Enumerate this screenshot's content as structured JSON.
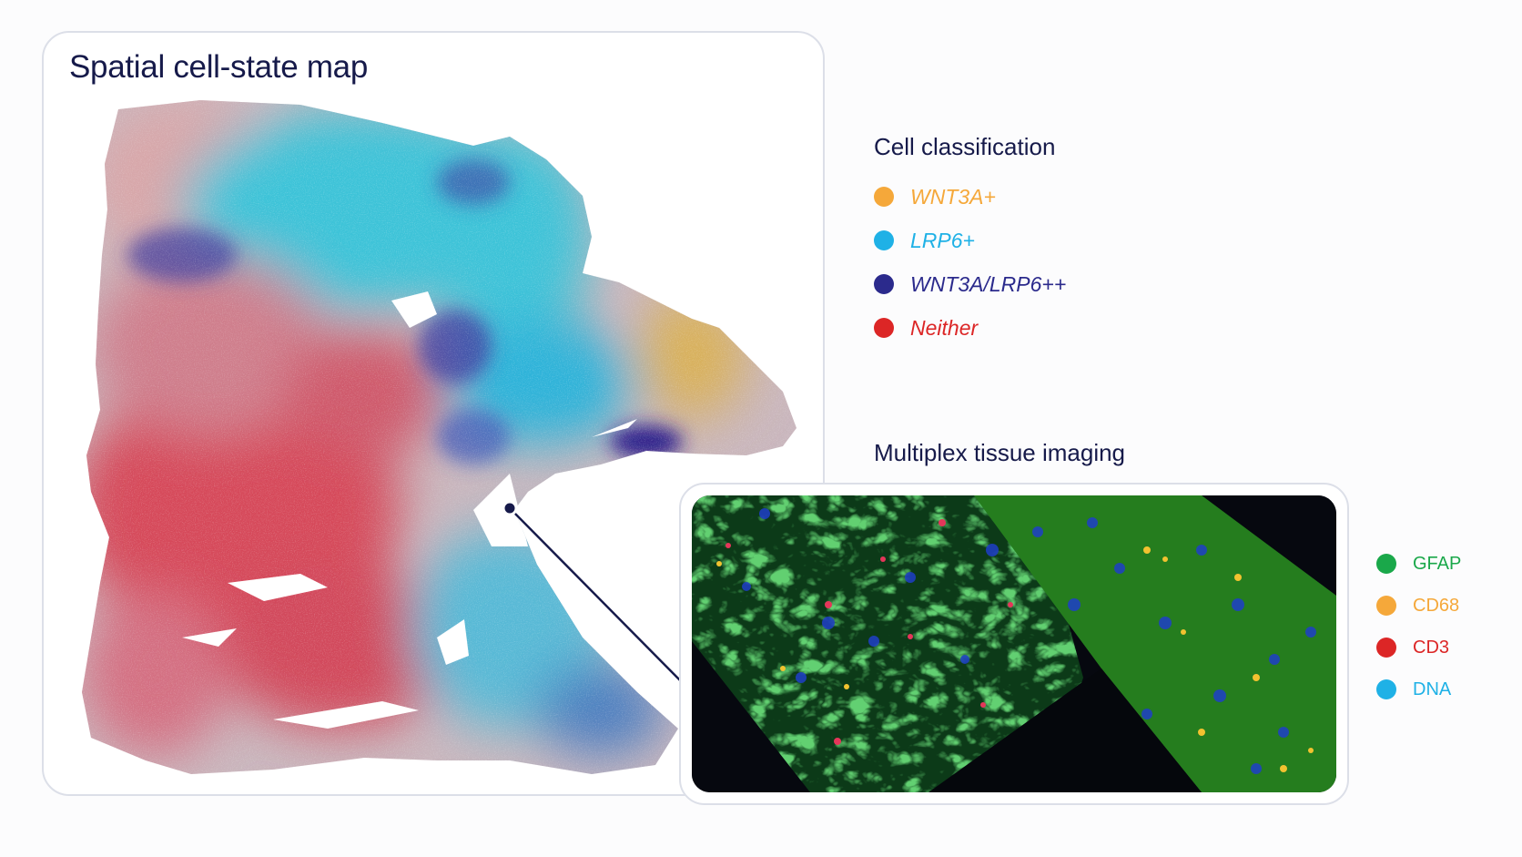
{
  "map": {
    "title": "Spatial cell-state map"
  },
  "classification": {
    "title": "Cell classification",
    "items": [
      {
        "label": "WNT3A+",
        "color": "#f5a83a"
      },
      {
        "label": "LRP6+",
        "color": "#1fb1e6"
      },
      {
        "label": "WNT3A/LRP6++",
        "color": "#2b2a8c"
      },
      {
        "label": "Neither",
        "color": "#dc2626"
      }
    ]
  },
  "imaging": {
    "title": "Multiplex tissue imaging",
    "channels": [
      {
        "label": "GFAP",
        "color": "#1aa84a"
      },
      {
        "label": "CD68",
        "color": "#f5a83a"
      },
      {
        "label": "CD3",
        "color": "#dc2626"
      },
      {
        "label": "DNA",
        "color": "#1fb1e6"
      }
    ]
  }
}
